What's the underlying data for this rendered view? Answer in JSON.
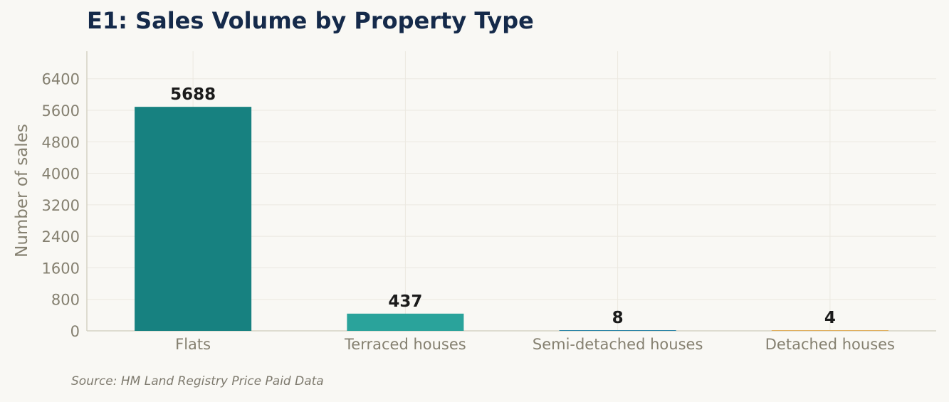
{
  "chart_data": {
    "type": "bar",
    "title": "E1: Sales Volume by Property Type",
    "ylabel": "Number of sales",
    "xlabel": "",
    "categories": [
      "Flats",
      "Terraced houses",
      "Semi-detached houses",
      "Detached houses"
    ],
    "values": [
      5688,
      437,
      8,
      4
    ],
    "data_labels": [
      "5688",
      "437",
      "8",
      "4"
    ],
    "bar_colors": [
      "#178180",
      "#2aa39b",
      "#2e86a8",
      "#e0b060"
    ],
    "ylim": [
      0,
      7100
    ],
    "yticks": [
      0,
      800,
      1600,
      2400,
      3200,
      4000,
      4800,
      5600,
      6400
    ],
    "grid": true,
    "legend": "none"
  },
  "footer": {
    "source": "Source: HM Land Registry Price Paid Data"
  }
}
